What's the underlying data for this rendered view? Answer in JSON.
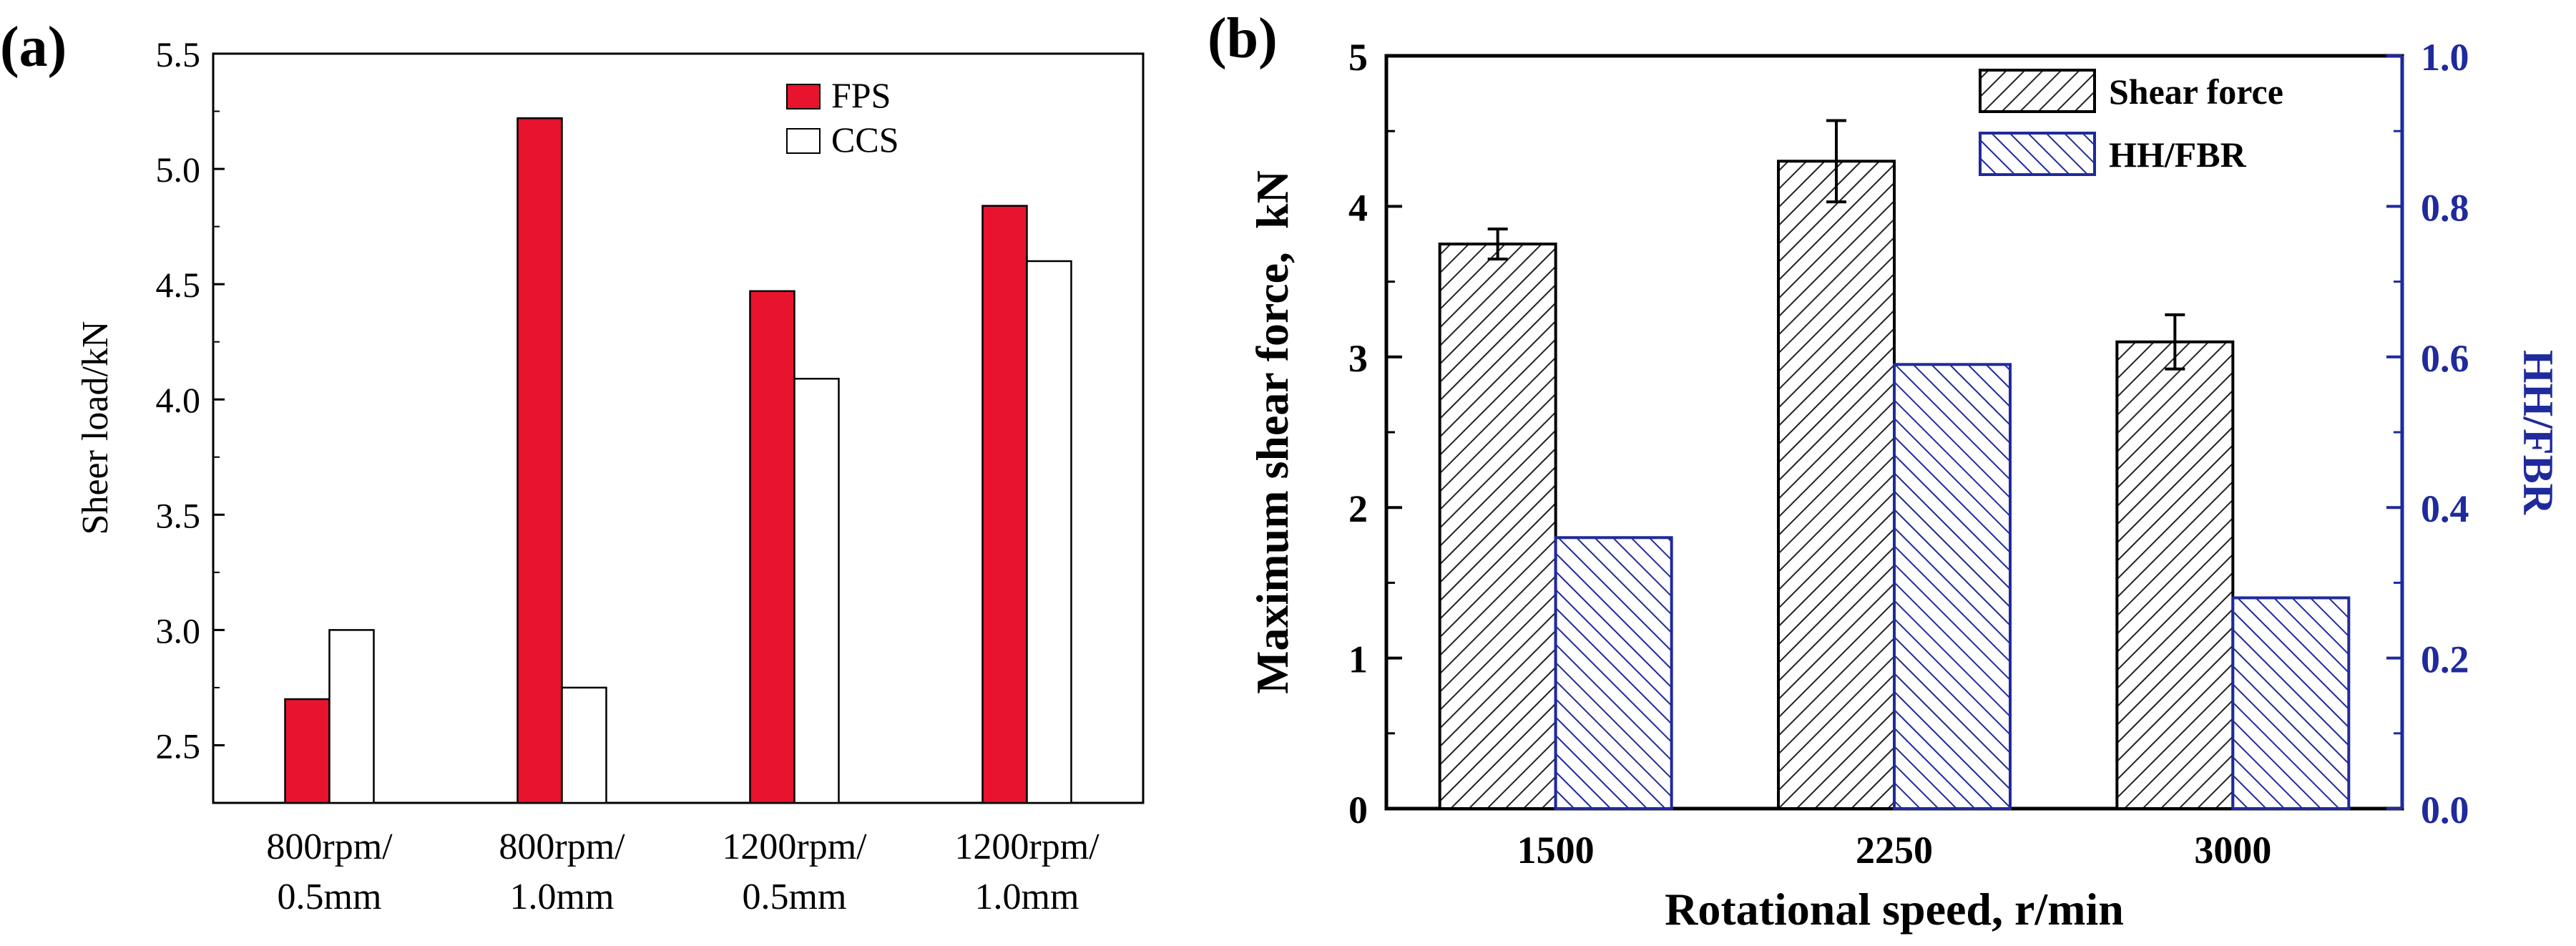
{
  "panels": {
    "a": {
      "label": "(a)"
    },
    "b": {
      "label": "(b)"
    }
  },
  "chart_data": [
    {
      "type": "bar",
      "panel": "(a)",
      "categories": [
        [
          "800rpm/",
          "0.5mm"
        ],
        [
          "800rpm/",
          "1.0mm"
        ],
        [
          "1200rpm/",
          "0.5mm"
        ],
        [
          "1200rpm/",
          "1.0mm"
        ]
      ],
      "series": [
        {
          "name": "FPS",
          "values": [
            2.7,
            5.22,
            4.47,
            4.84
          ],
          "color": "#e8132d"
        },
        {
          "name": "CCS",
          "values": [
            3.0,
            2.75,
            4.09,
            4.6
          ],
          "color": "#ffffff"
        }
      ],
      "ylabel": "Sheer load/kN",
      "ylim": [
        2.25,
        5.5
      ],
      "yticks": [
        2.5,
        3.0,
        3.5,
        4.0,
        4.5,
        5.0,
        5.5
      ],
      "ytick_labels": [
        "2.5",
        "3.0",
        "3.5",
        "4.0",
        "4.5",
        "5.0",
        "5.5"
      ],
      "legend": "top-right",
      "grid": false
    },
    {
      "type": "bar",
      "panel": "(b)",
      "categories": [
        "1500",
        "2250",
        "3000"
      ],
      "series": [
        {
          "name": "Shear force",
          "axis": "left",
          "values": [
            3.75,
            4.3,
            3.1
          ],
          "error": [
            0.1,
            0.27,
            0.18
          ],
          "color": "#222222"
        },
        {
          "name": "HH/FBR",
          "axis": "right",
          "values": [
            0.36,
            0.59,
            0.28
          ],
          "color": "#1f2a9c"
        }
      ],
      "xlabel": "Rotational speed, r/min",
      "ylabel": "Maximum shear force,  kN",
      "ylabel_right": "HH/FBR",
      "ylim": [
        0,
        5
      ],
      "ylim_right": [
        0,
        1.0
      ],
      "yticks": [
        0,
        1,
        2,
        3,
        4,
        5
      ],
      "ytick_labels": [
        "0",
        "1",
        "2",
        "3",
        "4",
        "5"
      ],
      "yticks_right": [
        0,
        0.2,
        0.4,
        0.6,
        0.8,
        1.0
      ],
      "ytick_labels_right": [
        "0.0",
        "0.2",
        "0.4",
        "0.6",
        "0.8",
        "1.0"
      ],
      "legend": "top-right",
      "grid": false,
      "right_axis_color": "#1f2a9c"
    }
  ]
}
